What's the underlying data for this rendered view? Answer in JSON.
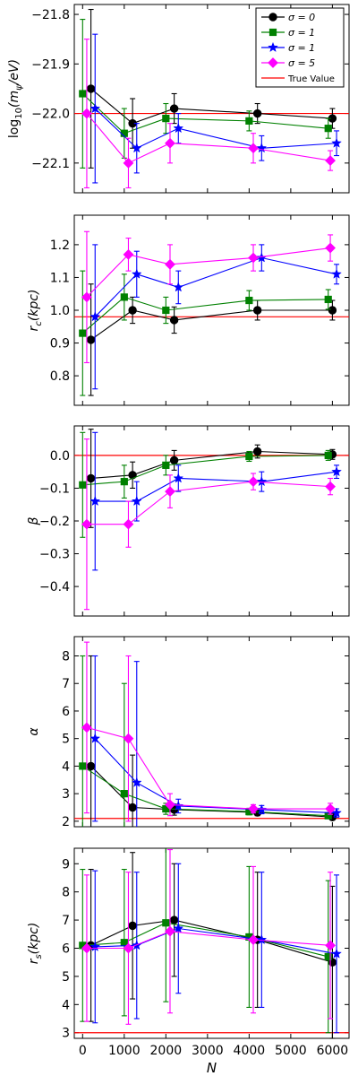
{
  "chart_data": [
    {
      "type": "scatter",
      "ylabel": "log10(mψ/eV)",
      "ylim": [
        -22.16,
        -21.78
      ],
      "yticks": [
        -21.8,
        -21.9,
        -22.0,
        -22.1
      ],
      "ytick_labels": [
        "−21.8",
        "−21.9",
        "−22.0",
        "−22.1"
      ],
      "true_value": -22.0,
      "legend": {
        "placement": "top-right",
        "entries": [
          {
            "label": "σ = 0",
            "series": 0
          },
          {
            "label": "σ = 1",
            "series": 1
          },
          {
            "label": "σ = 1",
            "series": 2
          },
          {
            "label": "σ = 5",
            "series": 3
          },
          {
            "label": "True Value",
            "series": "true"
          }
        ]
      },
      "series": [
        {
          "x": [
            200,
            1200,
            2200,
            4200,
            6000
          ],
          "y": [
            -21.95,
            -22.02,
            -21.99,
            -22.0,
            -22.01
          ],
          "err": [
            0.16,
            0.05,
            0.03,
            0.02,
            0.02
          ]
        },
        {
          "x": [
            0,
            1000,
            2000,
            4000,
            5900
          ],
          "y": [
            -21.96,
            -22.04,
            -22.01,
            -22.015,
            -22.03
          ],
          "err": [
            0.15,
            0.05,
            0.03,
            0.02,
            0.02
          ]
        },
        {
          "x": [
            300,
            1300,
            2300,
            4300,
            6100
          ],
          "y": [
            -21.99,
            -22.07,
            -22.03,
            -22.07,
            -22.06
          ],
          "err": [
            0.15,
            0.05,
            0.03,
            0.025,
            0.025
          ]
        },
        {
          "x": [
            100,
            1100,
            2100,
            4100,
            5950
          ],
          "y": [
            -22.0,
            -22.1,
            -22.06,
            -22.07,
            -22.095
          ],
          "err": [
            0.15,
            0.05,
            0.04,
            0.03,
            0.02
          ]
        }
      ]
    },
    {
      "type": "scatter",
      "ylabel": "rc(kpc)",
      "ylim": [
        0.71,
        1.29
      ],
      "yticks": [
        0.8,
        0.9,
        1.0,
        1.1,
        1.2
      ],
      "ytick_labels": [
        "0.8",
        "0.9",
        "1.0",
        "1.1",
        "1.2"
      ],
      "true_value": 0.98,
      "series": [
        {
          "x": [
            200,
            1200,
            2200,
            4200,
            6000
          ],
          "y": [
            0.91,
            1.0,
            0.97,
            1.0,
            1.0
          ],
          "err": [
            0.17,
            0.04,
            0.04,
            0.03,
            0.03
          ]
        },
        {
          "x": [
            0,
            1000,
            2000,
            4000,
            5900
          ],
          "y": [
            0.93,
            1.04,
            1.0,
            1.03,
            1.033
          ],
          "err": [
            0.19,
            0.07,
            0.04,
            0.03,
            0.03
          ]
        },
        {
          "x": [
            300,
            1300,
            2300,
            4300,
            6100
          ],
          "y": [
            0.98,
            1.11,
            1.07,
            1.16,
            1.11
          ],
          "err": [
            0.22,
            0.07,
            0.05,
            0.04,
            0.03
          ]
        },
        {
          "x": [
            100,
            1100,
            2100,
            4100,
            5950
          ],
          "y": [
            1.04,
            1.17,
            1.14,
            1.16,
            1.19
          ],
          "err": [
            0.2,
            0.05,
            0.06,
            0.04,
            0.04
          ]
        }
      ]
    },
    {
      "type": "scatter",
      "ylabel": "β",
      "ylim": [
        -0.49,
        0.09
      ],
      "yticks": [
        0.0,
        -0.1,
        -0.2,
        -0.3,
        -0.4
      ],
      "ytick_labels": [
        "0.0",
        "−0.1",
        "−0.2",
        "−0.3",
        "−0.4"
      ],
      "true_value": 0.0,
      "series": [
        {
          "x": [
            200,
            1200,
            2200,
            4200,
            6000
          ],
          "y": [
            -0.07,
            -0.06,
            -0.015,
            0.012,
            0.003
          ],
          "err": [
            0.15,
            0.04,
            0.03,
            0.02,
            0.015
          ]
        },
        {
          "x": [
            0,
            1000,
            2000,
            4000,
            5900
          ],
          "y": [
            -0.09,
            -0.08,
            -0.03,
            -0.003,
            0.0
          ],
          "err": [
            0.16,
            0.05,
            0.03,
            0.015,
            0.015
          ]
        },
        {
          "x": [
            300,
            1300,
            2300,
            4300,
            6100
          ],
          "y": [
            -0.14,
            -0.14,
            -0.07,
            -0.08,
            -0.05
          ],
          "err": [
            0.21,
            0.06,
            0.04,
            0.03,
            0.02
          ]
        },
        {
          "x": [
            100,
            1100,
            2100,
            4100,
            5950
          ],
          "y": [
            -0.21,
            -0.21,
            -0.11,
            -0.08,
            -0.095
          ],
          "err": [
            0.26,
            0.07,
            0.05,
            0.025,
            0.025
          ]
        }
      ]
    },
    {
      "type": "scatter",
      "ylabel": "α",
      "ylim": [
        1.8,
        8.7
      ],
      "yticks": [
        2,
        3,
        4,
        5,
        6,
        7,
        8
      ],
      "ytick_labels": [
        "2",
        "3",
        "4",
        "5",
        "6",
        "7",
        "8"
      ],
      "true_value": 2.1,
      "series": [
        {
          "x": [
            200,
            1200,
            2200,
            4200,
            6000
          ],
          "y": [
            4.0,
            2.5,
            2.42,
            2.32,
            2.15
          ],
          "err": [
            4.0,
            1.9,
            0.2,
            0.12,
            0.1
          ]
        },
        {
          "x": [
            0,
            1000,
            2000,
            4000,
            5900
          ],
          "y": [
            4.0,
            3.0,
            2.45,
            2.35,
            2.2
          ],
          "err": [
            4.0,
            4.0,
            0.2,
            0.12,
            0.1
          ]
        },
        {
          "x": [
            300,
            1300,
            2300,
            4300,
            6100
          ],
          "y": [
            5.0,
            3.4,
            2.55,
            2.42,
            2.3
          ],
          "err": [
            3.0,
            4.4,
            0.25,
            0.15,
            0.15
          ]
        },
        {
          "x": [
            100,
            1100,
            2100,
            4100,
            5950
          ],
          "y": [
            5.4,
            5.0,
            2.6,
            2.45,
            2.45
          ],
          "err": [
            3.1,
            3.0,
            0.4,
            0.15,
            0.2
          ]
        }
      ]
    },
    {
      "type": "scatter",
      "ylabel": "rs(kpc)",
      "xlabel": "N",
      "ylim": [
        2.8,
        9.55
      ],
      "yticks": [
        3,
        4,
        5,
        6,
        7,
        8,
        9
      ],
      "ytick_labels": [
        "3",
        "4",
        "5",
        "6",
        "7",
        "8",
        "9"
      ],
      "true_value": 3.0,
      "xlim": [
        -200,
        6400
      ],
      "xticks": [
        0,
        1000,
        2000,
        3000,
        4000,
        5000,
        6000
      ],
      "xtick_labels": [
        "0",
        "1000",
        "2000",
        "3000",
        "4000",
        "5000",
        "6000"
      ],
      "series": [
        {
          "x": [
            200,
            1200,
            2200,
            4200,
            6000
          ],
          "y": [
            6.1,
            6.8,
            7.0,
            6.3,
            5.5
          ],
          "err": [
            2.7,
            2.6,
            2.0,
            2.4,
            2.7
          ]
        },
        {
          "x": [
            0,
            1000,
            2000,
            4000,
            5900
          ],
          "y": [
            6.1,
            6.2,
            6.9,
            6.4,
            5.7
          ],
          "err": [
            2.7,
            2.6,
            2.8,
            2.5,
            2.7
          ]
        },
        {
          "x": [
            300,
            1300,
            2300,
            4300,
            6100
          ],
          "y": [
            6.05,
            6.1,
            6.7,
            6.3,
            5.8
          ],
          "err": [
            2.7,
            2.6,
            2.3,
            2.4,
            2.8
          ]
        },
        {
          "x": [
            100,
            1100,
            2100,
            4100,
            5950
          ],
          "y": [
            6.0,
            6.0,
            6.6,
            6.3,
            6.1
          ],
          "err": [
            2.6,
            2.7,
            2.9,
            2.6,
            2.6
          ]
        }
      ]
    }
  ],
  "styles": {
    "series_colors": [
      "#000000",
      "#008000",
      "#0000ff",
      "#ff00ff"
    ],
    "series_markers": [
      "circle",
      "square",
      "star",
      "diamond"
    ],
    "true_color": "#ff0000"
  }
}
